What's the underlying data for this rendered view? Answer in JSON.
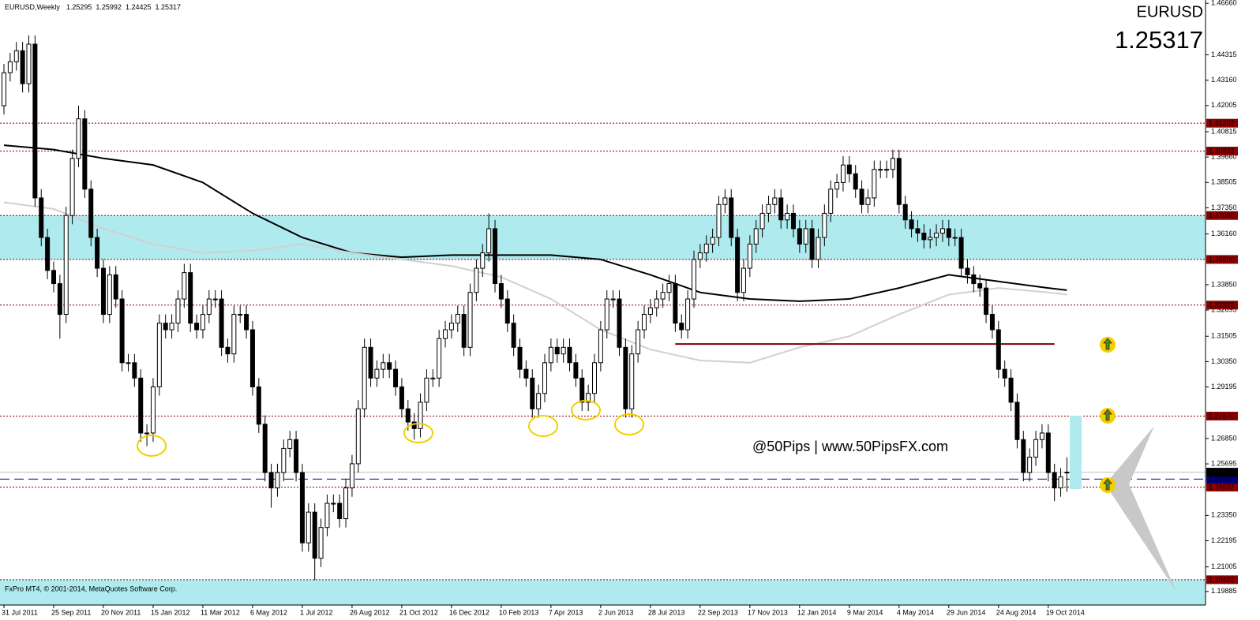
{
  "chart_data": {
    "type": "candlestick",
    "title": "EURUSD,Weekly",
    "symbol": "EURUSD",
    "footer": "FxPro MT4, © 2001-2014, MetaQuotes Software Corp.",
    "watermark": "@50Pips | www.50PipsFX.com",
    "ylim": [
      1.1927,
      1.4681
    ],
    "xlim": [
      -0.635,
      193.3
    ],
    "yticks": [
      {
        "value": 1.4666,
        "label": "1.46660"
      },
      1.44315,
      {
        "value": 1.4316,
        "label": "1.43160"
      },
      1.42005,
      1.40815,
      {
        "value": 1.3966,
        "label": "1.39660"
      },
      1.38505,
      {
        "value": 1.3735,
        "label": "1.37350"
      },
      {
        "value": 1.3616,
        "label": "1.36160"
      },
      {
        "value": 1.3385,
        "label": "1.33850"
      },
      1.32695,
      1.31505,
      {
        "value": 1.3035,
        "label": "1.30350"
      },
      1.29195,
      {
        "value": 1.2685,
        "label": "1.26850"
      },
      1.25695,
      {
        "value": 1.2335,
        "label": "1.23350"
      },
      1.22195,
      1.21005,
      1.19885
    ],
    "xticks": [
      {
        "value": 0,
        "label": "31 Jul 2011"
      },
      {
        "value": 8,
        "label": "25 Sep 2011"
      },
      {
        "value": 16,
        "label": "20 Nov 2011"
      },
      {
        "value": 24,
        "label": "15 Jan 2012"
      },
      {
        "value": 32,
        "label": "11 Mar 2012"
      },
      {
        "value": 40,
        "label": "6 May 2012"
      },
      {
        "value": 48,
        "label": "1 Jul 2012"
      },
      {
        "value": 56,
        "label": "26 Aug 2012"
      },
      {
        "value": 64,
        "label": "21 Oct 2012"
      },
      {
        "value": 72,
        "label": "16 Dec 2012"
      },
      {
        "value": 80,
        "label": "10 Feb 2013"
      },
      {
        "value": 88,
        "label": "7 Apr 2013"
      },
      {
        "value": 96,
        "label": "2 Jun 2013"
      },
      {
        "value": 104,
        "label": "28 Jul 2013"
      },
      {
        "value": 112,
        "label": "22 Sep 2013"
      },
      {
        "value": 120,
        "label": "17 Nov 2013"
      },
      {
        "value": 128,
        "label": "12 Jan 2014"
      },
      {
        "value": 136,
        "label": "9 Mar 2014"
      },
      {
        "value": 144,
        "label": "4 May 2014"
      },
      {
        "value": 152,
        "label": "29 Jun 2014"
      },
      {
        "value": 160,
        "label": "24 Aug 2014"
      },
      {
        "value": 168,
        "label": "19 Oct 2014"
      }
    ],
    "open": [
      1.42,
      1.435,
      1.44,
      1.445,
      1.43,
      1.448,
      1.378,
      1.36,
      1.345,
      1.339,
      1.325,
      1.37,
      1.396,
      1.414,
      1.382,
      1.36,
      1.346,
      1.325,
      1.343,
      1.332,
      1.303,
      1.303,
      1.296,
      1.271,
      1.271,
      1.292,
      1.321,
      1.318,
      1.321,
      1.332,
      1.344,
      1.321,
      1.318,
      1.325,
      1.332,
      1.332,
      1.31,
      1.307,
      1.325,
      1.325,
      1.318,
      1.292,
      1.275,
      1.253,
      1.246,
      1.253,
      1.264,
      1.268,
      1.253,
      1.221,
      1.235,
      1.214,
      1.228,
      1.239,
      1.239,
      1.232,
      1.246,
      1.257,
      1.282,
      1.31,
      1.296,
      1.3,
      1.303,
      1.3,
      1.292,
      1.282,
      1.276,
      1.273,
      1.285,
      1.296,
      1.296,
      1.314,
      1.318,
      1.321,
      1.325,
      1.31,
      1.335,
      1.346,
      1.353,
      1.364,
      1.339,
      1.332,
      1.321,
      1.31,
      1.3,
      1.296,
      1.282,
      1.289,
      1.303,
      1.31,
      1.307,
      1.31,
      1.303,
      1.296,
      1.285,
      1.289,
      1.303,
      1.318,
      1.332,
      1.332,
      1.31,
      1.282,
      1.307,
      1.318,
      1.325,
      1.328,
      1.332,
      1.335,
      1.339,
      1.321,
      1.318,
      1.332,
      1.35,
      1.353,
      1.357,
      1.36,
      1.375,
      1.378,
      1.36,
      1.335,
      1.346,
      1.357,
      1.364,
      1.371,
      1.375,
      1.378,
      1.368,
      1.371,
      1.364,
      1.357,
      1.364,
      1.35,
      1.36,
      1.371,
      1.382,
      1.385,
      1.393,
      1.389,
      1.382,
      1.375,
      1.378,
      1.391,
      1.391,
      1.391,
      1.396,
      1.375,
      1.368,
      1.364,
      1.362,
      1.359,
      1.36,
      1.362,
      1.364,
      1.36,
      1.36,
      1.346,
      1.343,
      1.339,
      1.337,
      1.325,
      1.318,
      1.3,
      1.296,
      1.285,
      1.268,
      1.253,
      1.26,
      1.268,
      1.271,
      1.253,
      1.246,
      1.25295
    ],
    "high": [
      1.439,
      1.444,
      1.449,
      1.449,
      1.452,
      1.452,
      1.382,
      1.364,
      1.349,
      1.343,
      1.374,
      1.4,
      1.42,
      1.418,
      1.386,
      1.364,
      1.35,
      1.347,
      1.347,
      1.336,
      1.307,
      1.307,
      1.3,
      1.275,
      1.296,
      1.325,
      1.325,
      1.325,
      1.336,
      1.348,
      1.348,
      1.325,
      1.329,
      1.336,
      1.336,
      1.336,
      1.314,
      1.329,
      1.329,
      1.329,
      1.322,
      1.296,
      1.279,
      1.257,
      1.257,
      1.268,
      1.272,
      1.272,
      1.257,
      1.239,
      1.239,
      1.232,
      1.243,
      1.243,
      1.243,
      1.25,
      1.261,
      1.286,
      1.314,
      1.314,
      1.304,
      1.307,
      1.307,
      1.304,
      1.296,
      1.286,
      1.28,
      1.289,
      1.3,
      1.3,
      1.318,
      1.322,
      1.325,
      1.329,
      1.329,
      1.339,
      1.35,
      1.357,
      1.371,
      1.368,
      1.343,
      1.336,
      1.325,
      1.314,
      1.304,
      1.3,
      1.293,
      1.307,
      1.314,
      1.314,
      1.314,
      1.314,
      1.307,
      1.3,
      1.293,
      1.307,
      1.322,
      1.336,
      1.336,
      1.336,
      1.314,
      1.311,
      1.322,
      1.329,
      1.332,
      1.336,
      1.339,
      1.343,
      1.343,
      1.325,
      1.336,
      1.354,
      1.357,
      1.361,
      1.364,
      1.379,
      1.382,
      1.382,
      1.364,
      1.35,
      1.361,
      1.368,
      1.375,
      1.379,
      1.382,
      1.382,
      1.375,
      1.375,
      1.368,
      1.368,
      1.368,
      1.364,
      1.375,
      1.386,
      1.389,
      1.397,
      1.397,
      1.393,
      1.386,
      1.382,
      1.395,
      1.395,
      1.395,
      1.4,
      1.4,
      1.379,
      1.372,
      1.368,
      1.366,
      1.364,
      1.366,
      1.368,
      1.368,
      1.364,
      1.364,
      1.35,
      1.347,
      1.343,
      1.341,
      1.329,
      1.322,
      1.304,
      1.3,
      1.289,
      1.272,
      1.264,
      1.272,
      1.275,
      1.275,
      1.257,
      1.255,
      1.25992
    ],
    "low": [
      1.416,
      1.431,
      1.436,
      1.426,
      1.426,
      1.374,
      1.356,
      1.341,
      1.335,
      1.314,
      1.321,
      1.366,
      1.392,
      1.378,
      1.356,
      1.342,
      1.321,
      1.321,
      1.328,
      1.299,
      1.299,
      1.292,
      1.267,
      1.265,
      1.267,
      1.288,
      1.314,
      1.314,
      1.317,
      1.328,
      1.317,
      1.314,
      1.314,
      1.321,
      1.328,
      1.306,
      1.303,
      1.303,
      1.321,
      1.314,
      1.288,
      1.271,
      1.249,
      1.237,
      1.242,
      1.249,
      1.26,
      1.249,
      1.217,
      1.217,
      1.204,
      1.21,
      1.224,
      1.235,
      1.228,
      1.228,
      1.242,
      1.253,
      1.278,
      1.292,
      1.292,
      1.296,
      1.296,
      1.288,
      1.278,
      1.272,
      1.268,
      1.269,
      1.281,
      1.292,
      1.292,
      1.31,
      1.314,
      1.317,
      1.306,
      1.306,
      1.331,
      1.342,
      1.349,
      1.335,
      1.328,
      1.317,
      1.306,
      1.296,
      1.292,
      1.278,
      1.278,
      1.285,
      1.299,
      1.303,
      1.303,
      1.299,
      1.292,
      1.281,
      1.281,
      1.285,
      1.299,
      1.314,
      1.328,
      1.306,
      1.278,
      1.278,
      1.303,
      1.314,
      1.321,
      1.324,
      1.328,
      1.331,
      1.317,
      1.314,
      1.314,
      1.328,
      1.346,
      1.349,
      1.353,
      1.356,
      1.371,
      1.356,
      1.331,
      1.331,
      1.342,
      1.353,
      1.36,
      1.367,
      1.371,
      1.364,
      1.364,
      1.36,
      1.353,
      1.353,
      1.346,
      1.346,
      1.356,
      1.367,
      1.378,
      1.381,
      1.385,
      1.378,
      1.371,
      1.371,
      1.374,
      1.387,
      1.387,
      1.387,
      1.371,
      1.364,
      1.36,
      1.358,
      1.355,
      1.355,
      1.356,
      1.358,
      1.356,
      1.356,
      1.342,
      1.339,
      1.335,
      1.333,
      1.321,
      1.314,
      1.296,
      1.292,
      1.281,
      1.264,
      1.249,
      1.249,
      1.256,
      1.264,
      1.249,
      1.24,
      1.242,
      1.24425
    ],
    "close": [
      1.435,
      1.44,
      1.445,
      1.43,
      1.448,
      1.378,
      1.36,
      1.345,
      1.339,
      1.325,
      1.37,
      1.396,
      1.414,
      1.382,
      1.36,
      1.346,
      1.325,
      1.343,
      1.332,
      1.303,
      1.303,
      1.296,
      1.271,
      1.271,
      1.292,
      1.321,
      1.318,
      1.321,
      1.332,
      1.344,
      1.321,
      1.318,
      1.325,
      1.332,
      1.332,
      1.31,
      1.307,
      1.325,
      1.325,
      1.318,
      1.292,
      1.275,
      1.253,
      1.246,
      1.253,
      1.264,
      1.268,
      1.253,
      1.221,
      1.235,
      1.214,
      1.228,
      1.239,
      1.239,
      1.232,
      1.246,
      1.257,
      1.282,
      1.31,
      1.296,
      1.3,
      1.303,
      1.3,
      1.292,
      1.282,
      1.276,
      1.273,
      1.285,
      1.296,
      1.296,
      1.314,
      1.318,
      1.321,
      1.325,
      1.31,
      1.335,
      1.346,
      1.353,
      1.364,
      1.339,
      1.332,
      1.321,
      1.31,
      1.3,
      1.296,
      1.282,
      1.289,
      1.303,
      1.31,
      1.307,
      1.31,
      1.303,
      1.296,
      1.285,
      1.289,
      1.303,
      1.318,
      1.332,
      1.332,
      1.31,
      1.282,
      1.307,
      1.318,
      1.325,
      1.328,
      1.332,
      1.335,
      1.339,
      1.321,
      1.318,
      1.332,
      1.35,
      1.353,
      1.357,
      1.36,
      1.375,
      1.378,
      1.36,
      1.335,
      1.346,
      1.357,
      1.364,
      1.371,
      1.375,
      1.378,
      1.368,
      1.371,
      1.364,
      1.357,
      1.364,
      1.35,
      1.36,
      1.371,
      1.382,
      1.385,
      1.393,
      1.389,
      1.382,
      1.375,
      1.378,
      1.391,
      1.391,
      1.391,
      1.396,
      1.375,
      1.368,
      1.364,
      1.362,
      1.359,
      1.36,
      1.362,
      1.364,
      1.36,
      1.36,
      1.346,
      1.343,
      1.339,
      1.337,
      1.325,
      1.318,
      1.3,
      1.296,
      1.285,
      1.268,
      1.253,
      1.26,
      1.268,
      1.271,
      1.253,
      1.246,
      1.251,
      1.25317
    ],
    "moving_averages": [
      {
        "color": "#000000",
        "x": [
          0,
          8,
          16,
          24,
          32,
          40,
          48,
          56,
          64,
          72,
          80,
          88,
          96,
          104,
          112,
          120,
          128,
          136,
          144,
          152,
          160,
          168,
          171
        ],
        "values": [
          1.402,
          1.4,
          1.396,
          1.393,
          1.385,
          1.371,
          1.36,
          1.353,
          1.351,
          1.352,
          1.352,
          1.352,
          1.35,
          1.343,
          1.335,
          1.332,
          1.331,
          1.332,
          1.337,
          1.343,
          1.34,
          1.337,
          1.336
        ]
      },
      {
        "color": "#d0d0d0",
        "x": [
          0,
          8,
          16,
          24,
          32,
          40,
          48,
          56,
          64,
          72,
          80,
          88,
          96,
          104,
          112,
          120,
          128,
          136,
          144,
          152,
          160,
          168,
          171
        ],
        "values": [
          1.376,
          1.373,
          1.364,
          1.357,
          1.353,
          1.354,
          1.357,
          1.353,
          1.35,
          1.347,
          1.342,
          1.332,
          1.318,
          1.309,
          1.304,
          1.303,
          1.31,
          1.315,
          1.325,
          1.334,
          1.337,
          1.335,
          1.334
        ]
      }
    ],
    "support_line": {
      "color": "#800000",
      "x": [
        108,
        169
      ],
      "values": [
        1.3115,
        1.3115
      ]
    },
    "levels": [
      1.41202,
      1.39933,
      {
        "value": 1.37,
        "label": "1.37000"
      },
      {
        "value": 1.35,
        "label": "1.35000"
      },
      1.32922,
      {
        "value": 1.2787,
        "label": "1.27870"
      },
      1.24637,
      1.20422
    ],
    "level_color": "#8b0000",
    "zone_color": "#aeeaee",
    "round_level": {
      "value": 1.25,
      "label": "1.25000"
    },
    "round_level_color": "#000080",
    "bid_color": "#000000",
    "symbol_color": "#ff0000",
    "watermark_color": "#8b1a1a"
  }
}
